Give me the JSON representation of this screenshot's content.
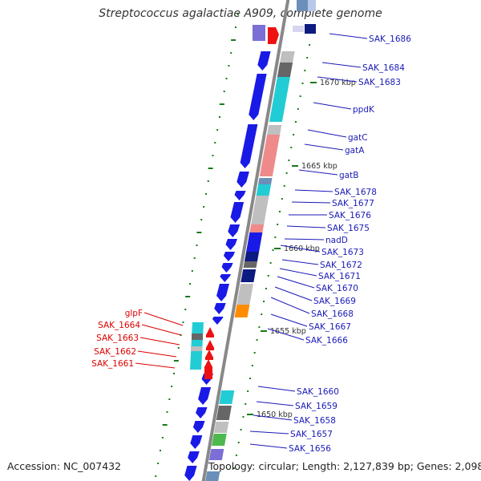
{
  "title": "Streptococcus agalactiae A909, complete genome",
  "footer": {
    "accession": "Accession: NC_007432",
    "summary": "Topology: circular; Length: 2,127,839 bp; Genes: 2,098"
  },
  "colors": {
    "forward": "#1a1ae6",
    "reverse_label": "#dd0000",
    "reverse_gene": "#ee1111",
    "backbone": "#888888",
    "tick_dot": "#1a7a1a",
    "label_blue": "#1a1ab8",
    "label_red": "#dd0000",
    "scale_text": "#333333",
    "seg_cyan": "#22ccd4",
    "seg_gray": "#bfbfbf",
    "seg_dark": "#666666",
    "seg_navy": "#0d1a80",
    "seg_pink": "#ef8a8a",
    "seg_steel": "#6b8fb8",
    "seg_orange": "#ff8c00",
    "seg_green": "#4db84d",
    "seg_purple": "#7b6fd6"
  },
  "gene_labels_right": [
    "SAK_1686",
    "SAK_1684",
    "SAK_1683",
    "ppdK",
    "gatC",
    "gatA",
    "gatB",
    "SAK_1678",
    "SAK_1677",
    "SAK_1676",
    "SAK_1675",
    "nadD",
    "SAK_1673",
    "SAK_1672",
    "SAK_1671",
    "SAK_1670",
    "SAK_1669",
    "SAK_1668",
    "SAK_1667",
    "SAK_1666",
    "SAK_1660",
    "SAK_1659",
    "SAK_1658",
    "SAK_1657",
    "SAK_1656"
  ],
  "gene_labels_left": [
    "glpF",
    "SAK_1664",
    "SAK_1663",
    "SAK_1662",
    "SAK_1661"
  ],
  "scale_labels": [
    "1670 kbp",
    "1665 kbp",
    "1660 kbp",
    "1655 kbp",
    "1650 kbp"
  ]
}
